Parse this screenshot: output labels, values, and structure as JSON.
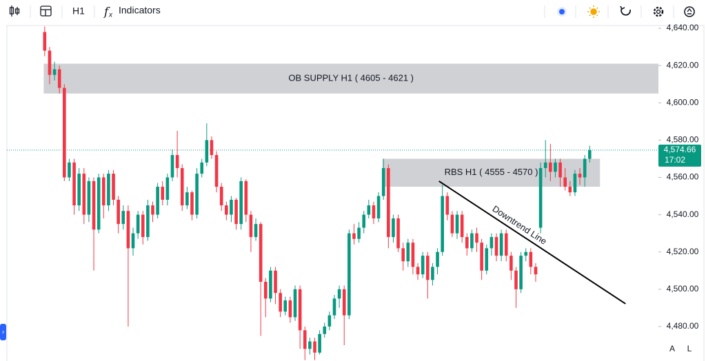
{
  "toolbar": {
    "timeframe": "H1",
    "indicators": "Indicators"
  },
  "corner_buttons": [
    "A",
    "L"
  ],
  "chart_data": {
    "type": "candlestick",
    "up_color": "#089981",
    "down_color": "#f23645",
    "ylim": [
      4461.5,
      4641.5
    ],
    "xlim": [
      -7.7,
      125
    ],
    "yticks": [
      {
        "value": 4480,
        "label": "4,480.00"
      },
      {
        "value": 4500,
        "label": "4,500.00"
      },
      {
        "value": 4520,
        "label": "4,520.00"
      },
      {
        "value": 4540,
        "label": "4,540.00"
      },
      {
        "value": 4560,
        "label": "4,560.00"
      },
      {
        "value": 4580,
        "label": "4,580.00"
      },
      {
        "value": 4600,
        "label": "4,600.00"
      },
      {
        "value": 4620,
        "label": "4,620.00"
      },
      {
        "value": 4640,
        "label": "4,640.00"
      }
    ],
    "open": [
      4638,
      4628,
      4615,
      4618,
      4608,
      4560,
      4568,
      4545,
      4562,
      4540,
      4558,
      4532,
      4560,
      4545,
      4562,
      4548,
      4535,
      4542,
      4522,
      4530,
      4540,
      4528,
      4545,
      4540,
      4555,
      4548,
      4560,
      4572,
      4565,
      4545,
      4552,
      4540,
      4562,
      4568,
      4580,
      4572,
      4555,
      4545,
      4540,
      4548,
      4535,
      4558,
      4540,
      4528,
      4535,
      4504,
      4495,
      4510,
      4498,
      4488,
      4494,
      4485,
      4500,
      4478,
      4468,
      4472,
      4466,
      4476,
      4480,
      4486,
      4495,
      4500,
      4486,
      4530,
      4527,
      4533,
      4540,
      4545,
      4538,
      4550,
      4565,
      4528,
      4538,
      4522,
      4515,
      4525,
      4512,
      4508,
      4518,
      4505,
      4512,
      4520,
      4550,
      4540,
      4530,
      4540,
      4528,
      4522,
      4530,
      4525,
      4510,
      4522,
      4528,
      4518,
      4530,
      4518,
      4510,
      4500,
      4518,
      4520,
      4512,
      4533,
      4565,
      4568,
      4563,
      4568,
      4560,
      4555,
      4552,
      4562,
      4560,
      4570
    ],
    "high": [
      4641,
      4630,
      4622,
      4620,
      4610,
      4570,
      4570,
      4565,
      4565,
      4560,
      4560,
      4562,
      4562,
      4564,
      4564,
      4550,
      4545,
      4545,
      4533,
      4542,
      4542,
      4548,
      4547,
      4557,
      4558,
      4562,
      4575,
      4585,
      4567,
      4555,
      4553,
      4565,
      4570,
      4589,
      4582,
      4574,
      4557,
      4547,
      4550,
      4549,
      4560,
      4559,
      4542,
      4538,
      4536,
      4506,
      4512,
      4512,
      4500,
      4496,
      4496,
      4502,
      4502,
      4480,
      4474,
      4474,
      4478,
      4482,
      4488,
      4497,
      4502,
      4502,
      4532,
      4535,
      4536,
      4542,
      4548,
      4547,
      4552,
      4570,
      4567,
      4540,
      4540,
      4525,
      4527,
      4527,
      4514,
      4520,
      4520,
      4514,
      4522,
      4556,
      4552,
      4542,
      4542,
      4542,
      4530,
      4532,
      4533,
      4527,
      4524,
      4530,
      4530,
      4532,
      4532,
      4520,
      4512,
      4520,
      4522,
      4522,
      4514,
      4568,
      4580,
      4578,
      4570,
      4570,
      4565,
      4558,
      4564,
      4565,
      4572,
      4577
    ],
    "low": [
      4625,
      4610,
      4612,
      4605,
      4558,
      4558,
      4540,
      4542,
      4535,
      4536,
      4510,
      4530,
      4538,
      4542,
      4545,
      4530,
      4532,
      4480,
      4518,
      4527,
      4524,
      4526,
      4536,
      4538,
      4545,
      4545,
      4558,
      4560,
      4542,
      4543,
      4537,
      4538,
      4560,
      4566,
      4570,
      4552,
      4542,
      4537,
      4536,
      4532,
      4532,
      4536,
      4520,
      4526,
      4475,
      4485,
      4493,
      4492,
      4485,
      4486,
      4482,
      4483,
      4468,
      4462,
      4465,
      4462,
      4465,
      4474,
      4478,
      4484,
      4490,
      4470,
      4484,
      4524,
      4525,
      4530,
      4538,
      4535,
      4536,
      4548,
      4522,
      4525,
      4520,
      4510,
      4512,
      4508,
      4505,
      4506,
      4495,
      4502,
      4508,
      4518,
      4537,
      4528,
      4527,
      4525,
      4518,
      4520,
      4520,
      4505,
      4508,
      4518,
      4515,
      4515,
      4515,
      4505,
      4490,
      4498,
      4515,
      4508,
      4504,
      4530,
      4560,
      4558,
      4560,
      4555,
      4553,
      4550,
      4550,
      4556,
      4555,
      4568
    ],
    "close": [
      4628,
      4615,
      4618,
      4608,
      4560,
      4568,
      4545,
      4562,
      4540,
      4558,
      4532,
      4560,
      4545,
      4562,
      4548,
      4535,
      4542,
      4522,
      4530,
      4540,
      4528,
      4545,
      4540,
      4555,
      4548,
      4560,
      4572,
      4565,
      4545,
      4552,
      4540,
      4562,
      4568,
      4580,
      4572,
      4555,
      4545,
      4540,
      4548,
      4535,
      4558,
      4540,
      4528,
      4535,
      4504,
      4495,
      4510,
      4498,
      4488,
      4494,
      4485,
      4500,
      4478,
      4468,
      4472,
      4466,
      4476,
      4480,
      4486,
      4495,
      4500,
      4486,
      4530,
      4527,
      4533,
      4540,
      4545,
      4538,
      4550,
      4565,
      4528,
      4538,
      4522,
      4515,
      4525,
      4512,
      4508,
      4518,
      4505,
      4512,
      4520,
      4550,
      4540,
      4530,
      4540,
      4528,
      4522,
      4530,
      4525,
      4510,
      4522,
      4528,
      4518,
      4530,
      4518,
      4510,
      4500,
      4518,
      4520,
      4512,
      4508,
      4565,
      4568,
      4563,
      4568,
      4560,
      4555,
      4552,
      4562,
      4560,
      4570,
      4574.66
    ],
    "zones": [
      {
        "label": "OB SUPPLY H1 ( 4605 - 4621 )",
        "low": 4605,
        "high": 4621,
        "x": [
          -0.2,
          125
        ]
      },
      {
        "label": "RBS H1 ( 4555 - 4570 )",
        "low": 4555,
        "high": 4570,
        "x": [
          68.8,
          113.1
        ]
      }
    ],
    "trendline": {
      "label": "Downtrend Line",
      "x": [
        80.3,
        118.3
      ],
      "y": [
        4558,
        4492.2
      ]
    },
    "last_price": {
      "value": 4574.66,
      "label": "4,574.66",
      "countdown": "17:02"
    }
  }
}
